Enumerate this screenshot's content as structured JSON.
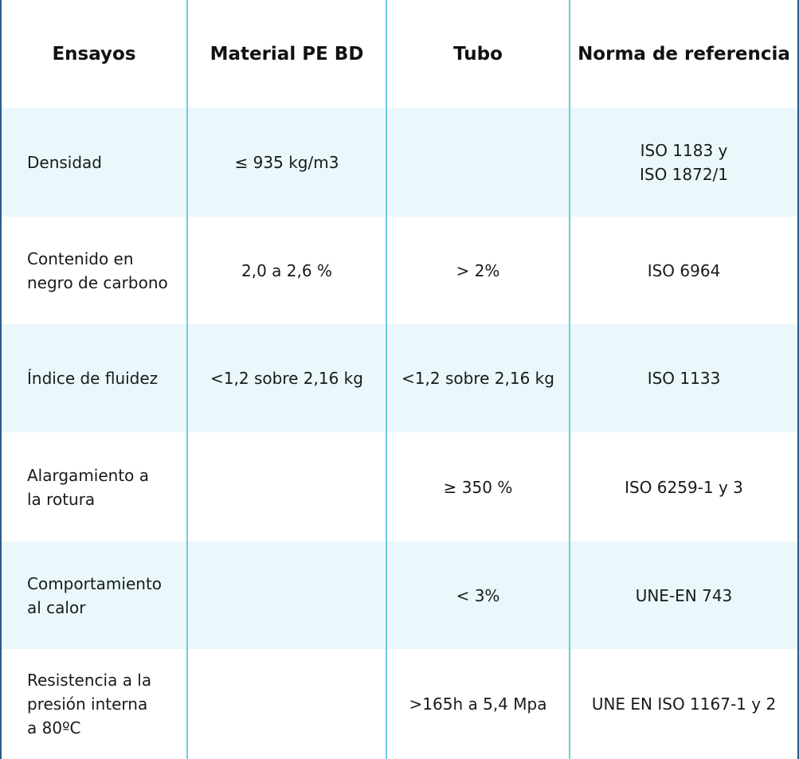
{
  "table": {
    "header": [
      "Ensayos",
      "Material PE BD",
      "Tubo",
      "Norma de referencia"
    ],
    "rows": [
      [
        "Densidad",
        "≤ 935 kg/m3",
        null,
        "ISO 1183 y\nISO 1872/1"
      ],
      [
        "Contenido en\nnegro de carbono",
        "2,0 a 2,6 %",
        "> 2%",
        "ISO 6964"
      ],
      [
        "Índice de fluidez",
        "<1,2 sobre 2,16 kg",
        "<1,2 sobre 2,16 kg",
        "ISO 1133"
      ],
      [
        "Alargamiento a\nla rotura",
        null,
        "≥ 350 %",
        "ISO 6259-1 y 3"
      ],
      [
        "Comportamiento\nal calor",
        null,
        "< 3%",
        "UNE-EN 743"
      ],
      [
        "Resistencia a la\npresión interna\na 80ºC",
        null,
        ">165h a 5,4 Mpa",
        "UNE EN ISO 1167-1 y 2"
      ]
    ]
  }
}
